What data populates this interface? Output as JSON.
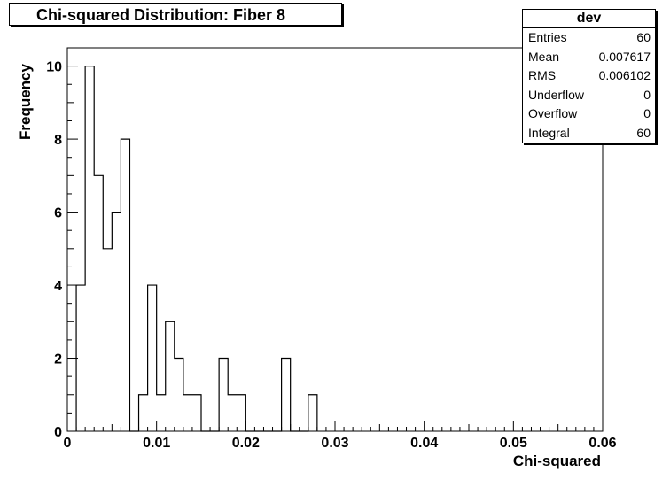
{
  "title": "Chi-squared Distribution: Fiber 8",
  "stats": {
    "name": "dev",
    "rows": [
      {
        "label": "Entries",
        "value": "60"
      },
      {
        "label": "Mean",
        "value": "0.007617"
      },
      {
        "label": "RMS",
        "value": "0.006102"
      },
      {
        "label": "Underflow",
        "value": "0"
      },
      {
        "label": "Overflow",
        "value": "0"
      },
      {
        "label": "Integral",
        "value": "60"
      }
    ]
  },
  "chart_data": {
    "type": "bar",
    "histogram": true,
    "title": "Chi-squared Distribution: Fiber 8",
    "xlabel": "Chi-squared",
    "ylabel": "Frequency",
    "xlim": [
      0,
      0.06
    ],
    "ylim": [
      0,
      10.5
    ],
    "bin_width": 0.001,
    "x_ticks": [
      "0",
      "0.01",
      "0.02",
      "0.03",
      "0.04",
      "0.05",
      "0.06"
    ],
    "x_tick_values": [
      0,
      0.01,
      0.02,
      0.03,
      0.04,
      0.05,
      0.06
    ],
    "y_ticks": [
      "0",
      "2",
      "4",
      "6",
      "8",
      "10"
    ],
    "y_tick_values": [
      0,
      2,
      4,
      6,
      8,
      10
    ],
    "bin_edges_start": [
      0.001,
      0.002,
      0.003,
      0.004,
      0.005,
      0.006,
      0.007,
      0.008,
      0.009,
      0.01,
      0.011,
      0.012,
      0.013,
      0.014,
      0.015,
      0.016,
      0.017,
      0.018,
      0.019,
      0.02,
      0.021,
      0.022,
      0.023,
      0.024,
      0.025,
      0.026,
      0.027
    ],
    "values": [
      4,
      10,
      7,
      5,
      6,
      8,
      0,
      1,
      4,
      1,
      3,
      2,
      1,
      1,
      0,
      0,
      2,
      1,
      1,
      0,
      0,
      0,
      0,
      2,
      0,
      0,
      1
    ]
  }
}
